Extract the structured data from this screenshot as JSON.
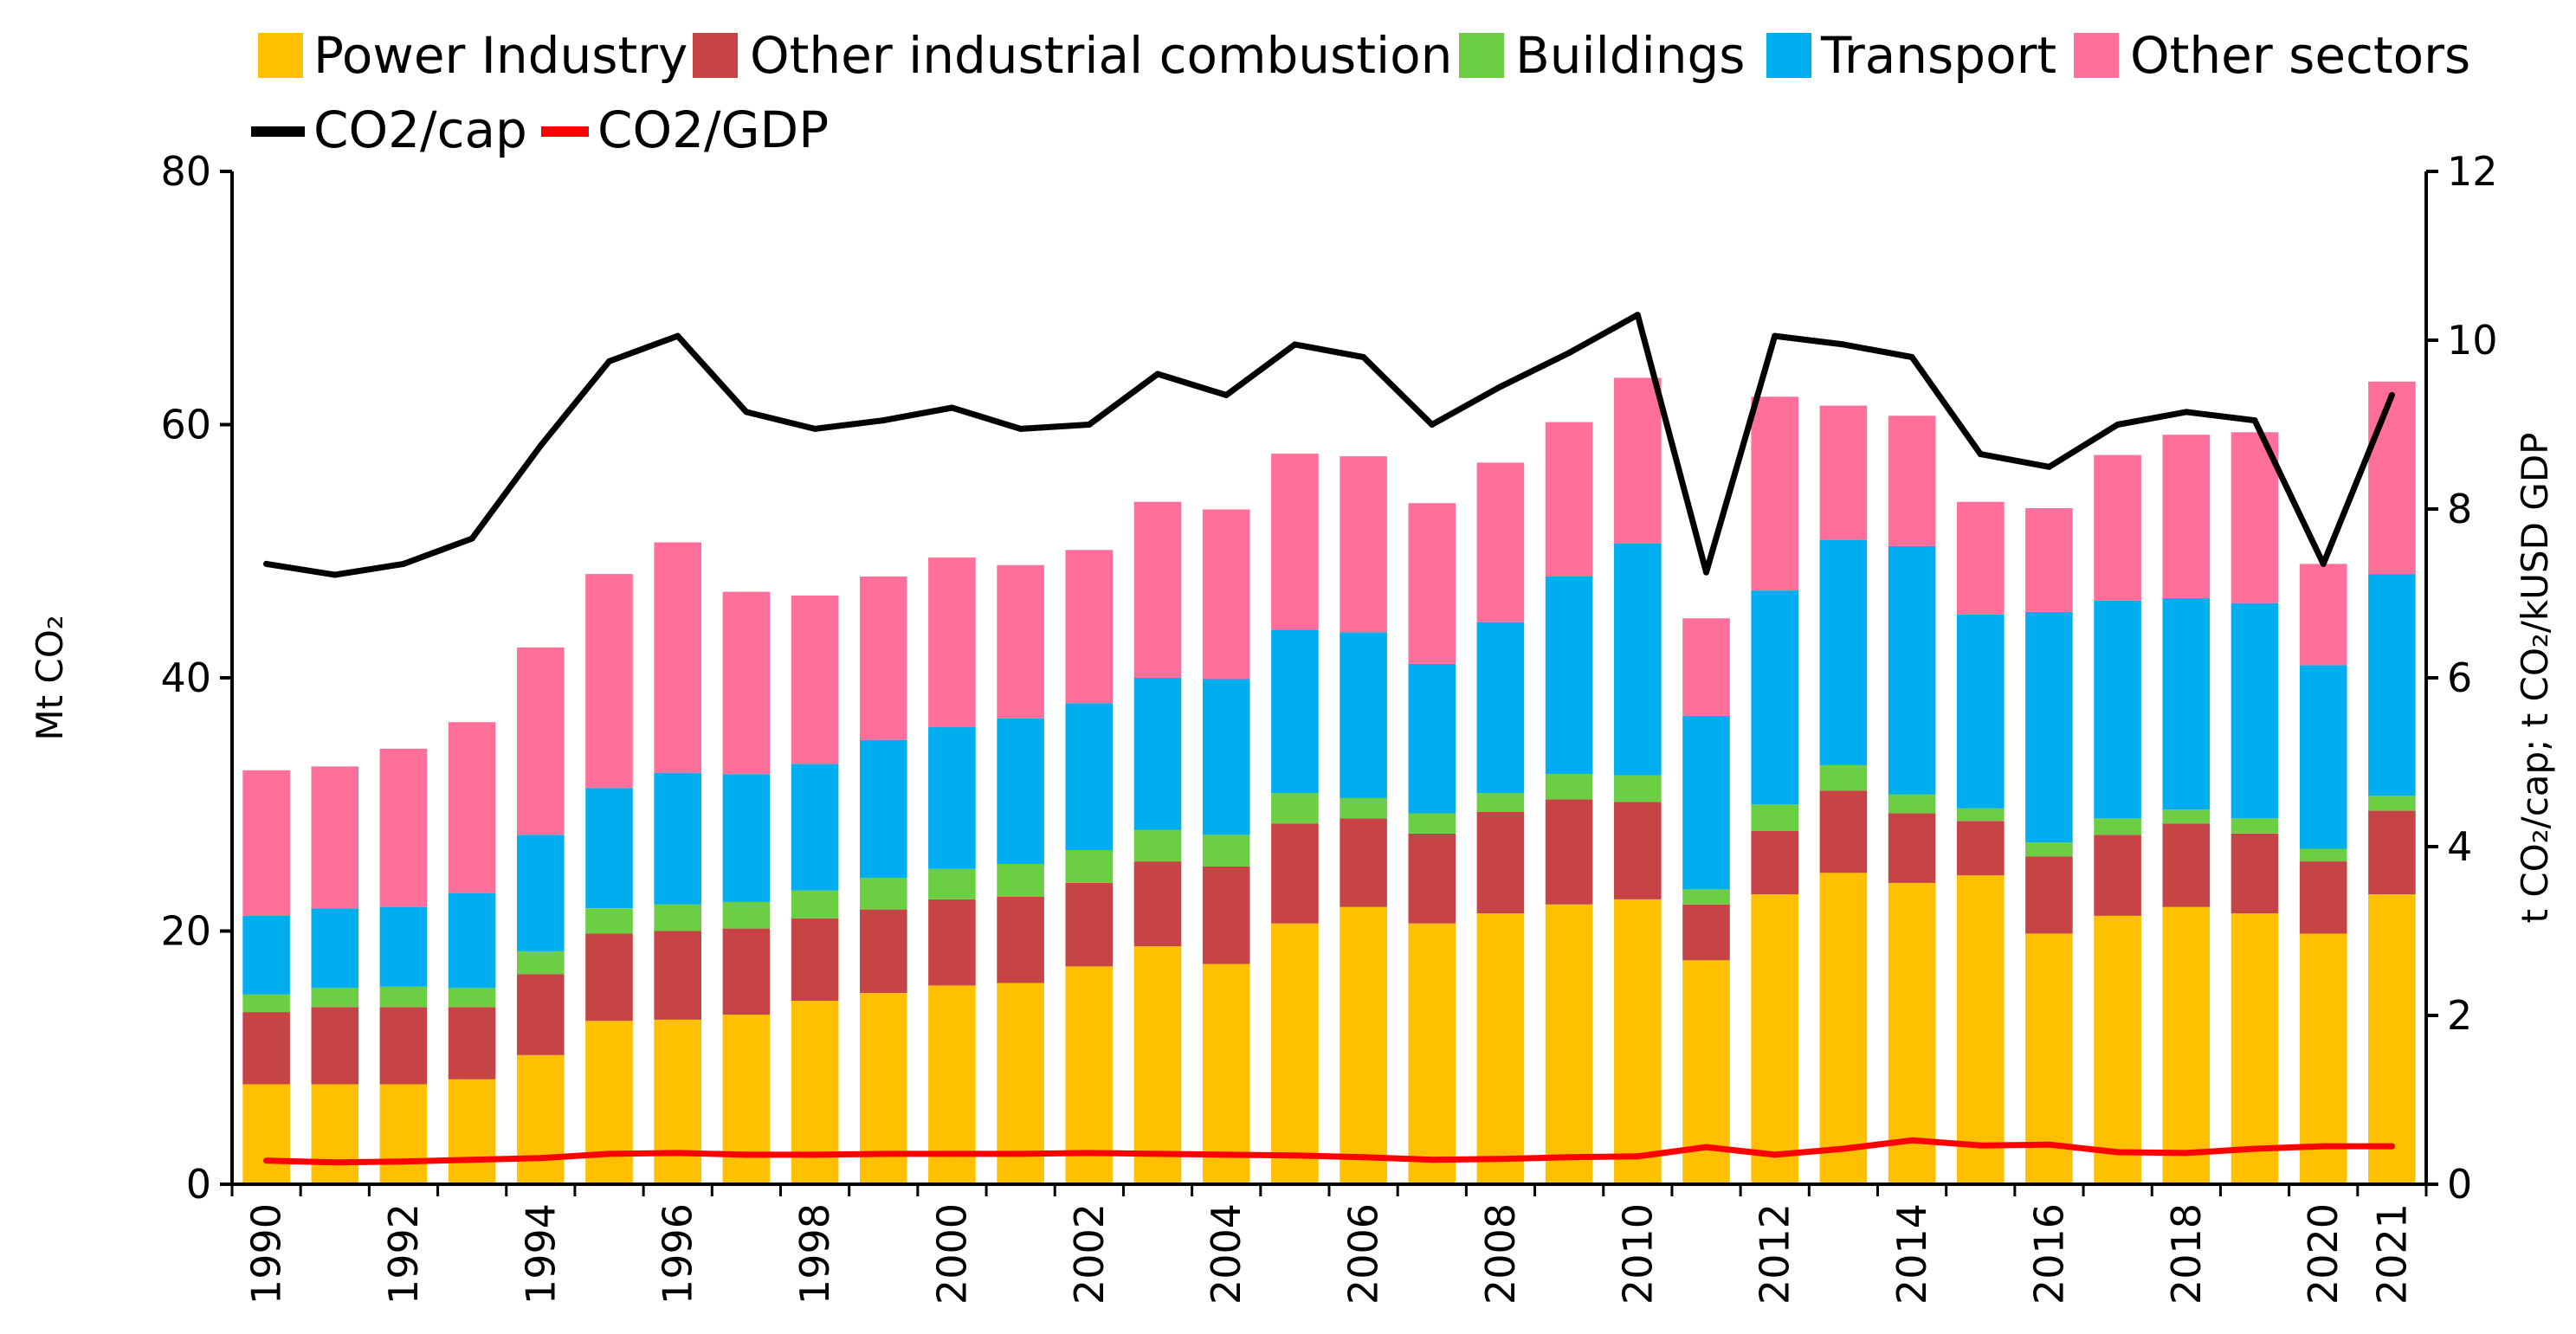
{
  "chart_data": {
    "type": "bar",
    "stacked": true,
    "title": "",
    "xlabel": "",
    "ylabel": "Mt CO₂",
    "y2label": "t CO₂/cap; t CO₂/kUSD GDP",
    "ylim": [
      0,
      80
    ],
    "y2lim": [
      0,
      12
    ],
    "yticks": [
      0,
      20,
      40,
      60,
      80
    ],
    "y2ticks": [
      0,
      2,
      4,
      6,
      8,
      10,
      12
    ],
    "legend_position": "top-left",
    "categories": [
      "1990",
      "1991",
      "1992",
      "1993",
      "1994",
      "1995",
      "1996",
      "1997",
      "1998",
      "1999",
      "2000",
      "2001",
      "2002",
      "2003",
      "2004",
      "2005",
      "2006",
      "2007",
      "2008",
      "2009",
      "2010",
      "2011",
      "2012",
      "2013",
      "2014",
      "2015",
      "2016",
      "2017",
      "2018",
      "2019",
      "2020",
      "2021"
    ],
    "x_tick_labels": [
      "1990",
      "1992",
      "1994",
      "1996",
      "1998",
      "2000",
      "2002",
      "2004",
      "2006",
      "2008",
      "2010",
      "2012",
      "2014",
      "2016",
      "2018",
      "2020",
      "2021"
    ],
    "series": [
      {
        "name": "Power Industry",
        "color": "#FFC000",
        "values": [
          7.9,
          7.9,
          7.9,
          8.3,
          10.2,
          12.9,
          13.0,
          13.4,
          14.5,
          15.1,
          15.7,
          15.9,
          17.2,
          18.8,
          17.4,
          20.6,
          21.9,
          20.6,
          21.4,
          22.1,
          22.5,
          17.7,
          22.9,
          24.6,
          23.8,
          24.4,
          19.8,
          21.2,
          21.9,
          21.4,
          19.8,
          22.9
        ]
      },
      {
        "name": "Other industrial combustion",
        "color": "#C74446",
        "values": [
          5.7,
          6.1,
          6.1,
          5.7,
          6.4,
          6.9,
          7.0,
          6.8,
          6.5,
          6.6,
          6.8,
          6.8,
          6.6,
          6.7,
          7.7,
          7.9,
          7.0,
          7.1,
          8.0,
          8.3,
          7.7,
          4.4,
          5.0,
          6.5,
          5.5,
          4.3,
          6.1,
          6.4,
          6.6,
          6.3,
          5.7,
          6.6
        ]
      },
      {
        "name": "Buildings",
        "color": "#6CCF43",
        "values": [
          1.4,
          1.5,
          1.6,
          1.5,
          1.8,
          2.0,
          2.1,
          2.1,
          2.2,
          2.5,
          2.4,
          2.6,
          2.6,
          2.5,
          2.5,
          2.4,
          1.6,
          1.6,
          1.5,
          2.0,
          2.1,
          1.2,
          2.1,
          2.0,
          1.5,
          1.0,
          1.1,
          1.3,
          1.1,
          1.2,
          1.0,
          1.2
        ]
      },
      {
        "name": "Transport",
        "color": "#00AEEF",
        "values": [
          6.2,
          6.3,
          6.3,
          7.5,
          9.2,
          9.5,
          10.4,
          10.1,
          10.0,
          10.9,
          11.2,
          11.5,
          11.6,
          12.0,
          12.3,
          12.9,
          13.1,
          11.8,
          13.5,
          15.6,
          18.3,
          13.7,
          16.9,
          17.8,
          19.6,
          15.3,
          18.2,
          17.2,
          16.7,
          17.0,
          14.5,
          17.5
        ]
      },
      {
        "name": "Other sectors",
        "color": "#FF6F9A",
        "values": [
          11.5,
          11.2,
          12.5,
          13.5,
          14.8,
          16.9,
          18.2,
          14.4,
          13.3,
          12.9,
          13.4,
          12.1,
          12.1,
          13.9,
          13.4,
          13.9,
          13.9,
          12.7,
          12.6,
          12.2,
          13.1,
          7.7,
          15.3,
          10.6,
          10.3,
          8.9,
          8.2,
          11.5,
          12.9,
          13.5,
          8.0,
          15.2
        ]
      }
    ],
    "lines": [
      {
        "name": "CO2/cap",
        "color": "#000000",
        "axis": "right",
        "values": [
          7.35,
          7.22,
          7.35,
          7.65,
          8.75,
          9.75,
          10.05,
          9.15,
          8.95,
          9.05,
          9.2,
          8.95,
          9.0,
          9.6,
          9.35,
          9.95,
          9.8,
          9.0,
          9.45,
          9.85,
          10.3,
          7.25,
          10.05,
          9.95,
          9.8,
          8.65,
          8.5,
          9.0,
          9.15,
          9.05,
          7.35,
          9.35
        ]
      },
      {
        "name": "CO2/GDP",
        "color": "#FF0000",
        "axis": "right",
        "values": [
          0.28,
          0.26,
          0.27,
          0.29,
          0.31,
          0.36,
          0.37,
          0.35,
          0.35,
          0.36,
          0.36,
          0.36,
          0.37,
          0.36,
          0.35,
          0.34,
          0.32,
          0.29,
          0.3,
          0.32,
          0.33,
          0.44,
          0.35,
          0.42,
          0.52,
          0.46,
          0.47,
          0.38,
          0.37,
          0.42,
          0.45,
          0.45
        ]
      }
    ]
  }
}
